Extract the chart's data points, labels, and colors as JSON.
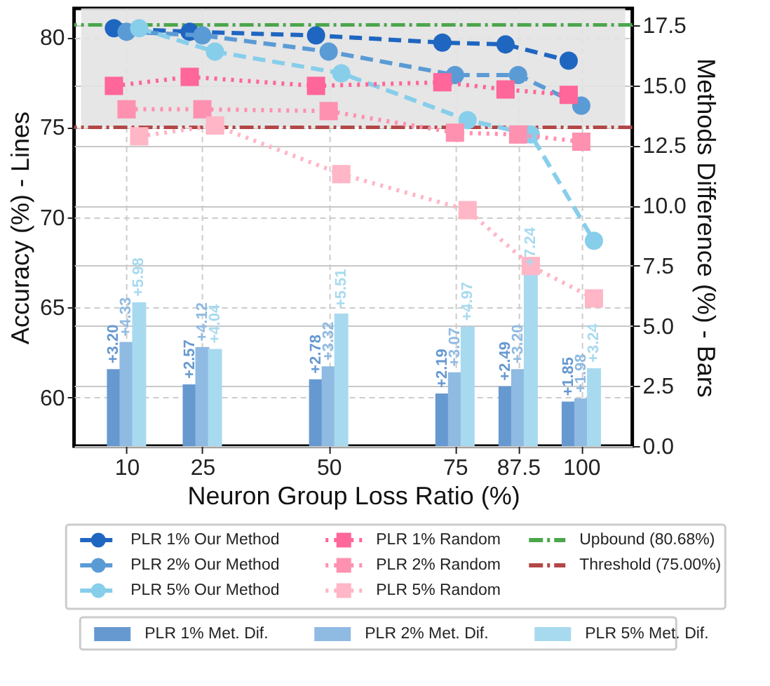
{
  "chart_data": {
    "type": "line",
    "xlabel": "Neuron Group Loss Ratio (%)",
    "ylabel": "Accuracy (%) - Lines",
    "y2label": "Methods Difference (%) - Bars",
    "xlim": [
      1,
      108.7
    ],
    "xticks": [
      10,
      25,
      50,
      75,
      87.5,
      100
    ],
    "ylim": [
      57.3,
      81.6
    ],
    "yticks": [
      60,
      65,
      70,
      75,
      80
    ],
    "y2lim": [
      0,
      18.2
    ],
    "y2ticks": [
      {
        "value": 0,
        "label": "0.0"
      },
      {
        "value": 2.5,
        "label": "2.5"
      },
      {
        "value": 5,
        "label": "5.0"
      },
      {
        "value": 7.5,
        "label": "7.5"
      },
      {
        "value": 10,
        "label": "10.0"
      },
      {
        "value": 12.5,
        "label": "12.5"
      },
      {
        "value": 15,
        "label": "15.0"
      },
      {
        "value": 17.5,
        "label": "17.5"
      }
    ],
    "grid": true,
    "legend": "bottom",
    "bands": [
      {
        "axis": "y",
        "from": 75,
        "to": 81.6,
        "color": "#e3e3e3"
      }
    ],
    "ref_lines": [
      {
        "axis": "y",
        "value": 80.68,
        "label": "Upbound (80.68%)",
        "color": "#4ca64c",
        "line_style": "dashed"
      },
      {
        "axis": "y",
        "value": 75,
        "label": "Threshold (75.00%)",
        "color": "#b34747",
        "line_style": "dashed"
      }
    ],
    "series": [
      {
        "name": "PLR 1% Our Method",
        "color": "#1f66c1",
        "marker": "circle",
        "line_style": "dashed",
        "x": [
          7.5,
          22.5,
          47.5,
          72.5,
          85,
          97.5
        ],
        "values": [
          80.5,
          80.3,
          80.1,
          79.7,
          79.6,
          78.7
        ]
      },
      {
        "name": "PLR 2% Our Method",
        "color": "#5b9bd5",
        "marker": "circle",
        "line_style": "dashed",
        "x": [
          10,
          25,
          50,
          75,
          87.5,
          100
        ],
        "values": [
          80.3,
          80.1,
          79.2,
          77.9,
          77.9,
          76.2
        ]
      },
      {
        "name": "PLR 5% Our Method",
        "color": "#87ceeb",
        "marker": "circle",
        "line_style": "dashed",
        "x": [
          12.5,
          27.5,
          52.5,
          77.5,
          90,
          102.5
        ],
        "values": [
          80.5,
          79.2,
          78.0,
          75.4,
          74.6,
          68.7
        ]
      },
      {
        "name": "PLR 1% Random",
        "color": "#ff6699",
        "marker": "square",
        "line_style": "dotted",
        "x": [
          7.5,
          22.5,
          47.5,
          72.5,
          85,
          97.5
        ],
        "values": [
          77.3,
          77.8,
          77.3,
          77.5,
          77.1,
          76.8
        ]
      },
      {
        "name": "PLR 2% Random",
        "color": "#ff91b0",
        "marker": "square",
        "line_style": "dotted",
        "x": [
          10,
          25,
          50,
          75,
          87.5,
          100
        ],
        "values": [
          76.0,
          76.0,
          75.9,
          74.7,
          74.6,
          74.2
        ]
      },
      {
        "name": "PLR 5% Random",
        "color": "#ffb6c6",
        "marker": "square",
        "line_style": "dotted",
        "x": [
          12.5,
          27.5,
          52.5,
          77.5,
          90,
          102.5
        ],
        "values": [
          74.5,
          75.1,
          72.4,
          70.4,
          67.3,
          65.5
        ]
      },
      {
        "name": "PLR 1% Met. Dif.",
        "type": "bar",
        "axis": "y2",
        "color": "#6699d0",
        "x": [
          7.5,
          22.5,
          47.5,
          72.5,
          85,
          97.5
        ],
        "values": [
          3.2,
          2.57,
          2.78,
          2.19,
          2.49,
          1.85
        ],
        "value_labels": [
          "+3.20",
          "+2.57",
          "+2.78",
          "+2.19",
          "+2.49",
          "+1.85"
        ]
      },
      {
        "name": "PLR 2% Met. Dif.",
        "type": "bar",
        "axis": "y2",
        "color": "#8fbae2",
        "x": [
          10,
          25,
          50,
          75,
          87.5,
          100
        ],
        "values": [
          4.33,
          4.12,
          3.32,
          3.07,
          3.2,
          1.98
        ],
        "value_labels": [
          "+4.33",
          "+4.12",
          "+3.32",
          "+3.07",
          "+3.20",
          "+1.98"
        ]
      },
      {
        "name": "PLR 5% Met. Dif.",
        "type": "bar",
        "axis": "y2",
        "color": "#a8daef",
        "x": [
          12.5,
          27.5,
          52.5,
          77.5,
          90,
          102.5
        ],
        "values": [
          5.98,
          4.04,
          5.51,
          4.97,
          7.24,
          3.24
        ],
        "value_labels": [
          "+5.98",
          "+4.04",
          "+5.51",
          "+4.97",
          "+7.24",
          "+3.24"
        ]
      }
    ]
  }
}
